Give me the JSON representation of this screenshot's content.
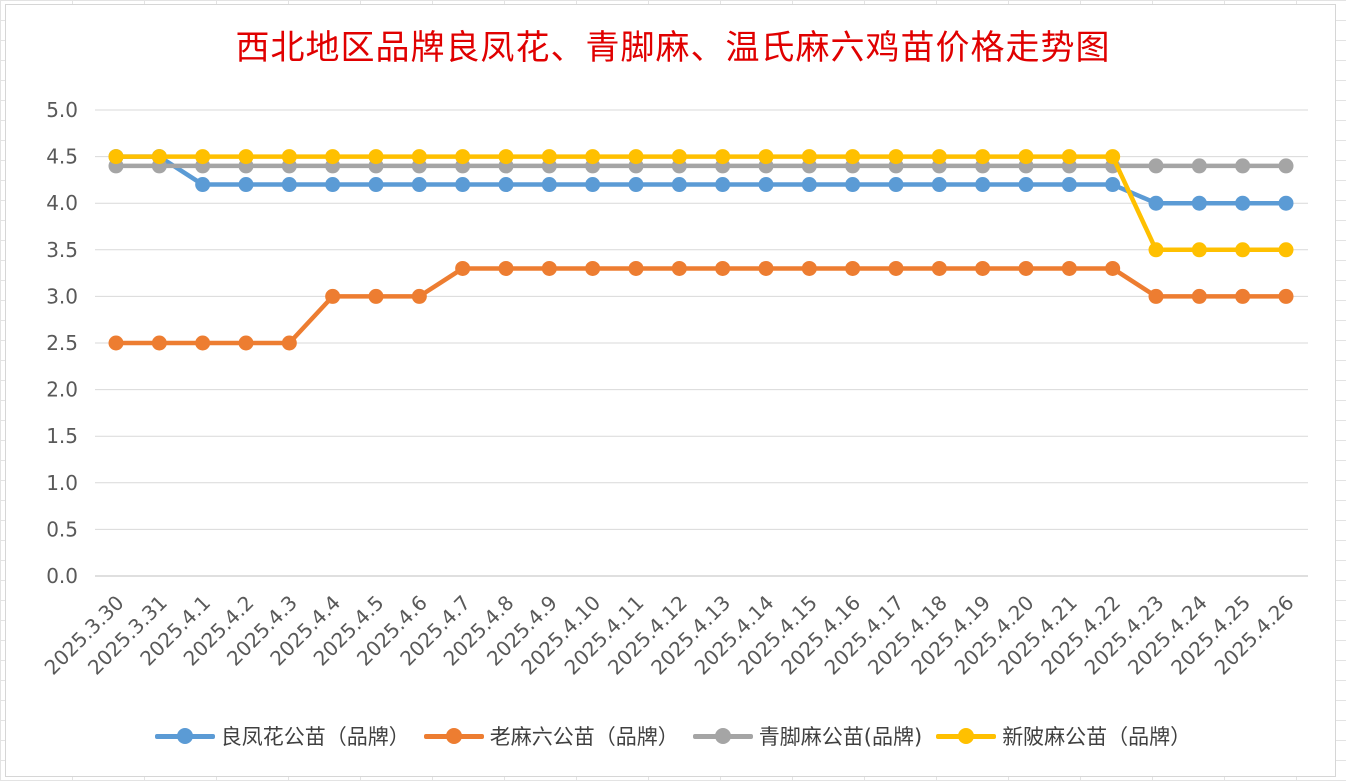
{
  "chart_data": {
    "type": "line",
    "title": "西北地区品牌良凤花、青脚麻、温氏麻六鸡苗价格走势图",
    "categories": [
      "2025.3.30",
      "2025.3.31",
      "2025.4.1",
      "2025.4.2",
      "2025.4.3",
      "2025.4.4",
      "2025.4.5",
      "2025.4.6",
      "2025.4.7",
      "2025.4.8",
      "2025.4.9",
      "2025.4.10",
      "2025.4.11",
      "2025.4.12",
      "2025.4.13",
      "2025.4.14",
      "2025.4.15",
      "2025.4.16",
      "2025.4.17",
      "2025.4.18",
      "2025.4.19",
      "2025.4.20",
      "2025.4.21",
      "2025.4.22",
      "2025.4.23",
      "2025.4.24",
      "2025.4.25",
      "2025.4.26"
    ],
    "ylim": [
      0,
      5.0
    ],
    "yticks": [
      "0.0",
      "0.5",
      "1.0",
      "1.5",
      "2.0",
      "2.5",
      "3.0",
      "3.5",
      "4.0",
      "4.5",
      "5.0"
    ],
    "grid": true,
    "legend_position": "bottom",
    "series": [
      {
        "name": "良凤花公苗（品牌）",
        "color": "#5b9bd5",
        "values": [
          4.5,
          4.5,
          4.2,
          4.2,
          4.2,
          4.2,
          4.2,
          4.2,
          4.2,
          4.2,
          4.2,
          4.2,
          4.2,
          4.2,
          4.2,
          4.2,
          4.2,
          4.2,
          4.2,
          4.2,
          4.2,
          4.2,
          4.2,
          4.2,
          4.0,
          4.0,
          4.0,
          4.0
        ]
      },
      {
        "name": "老麻六公苗（品牌）",
        "color": "#ed7d31",
        "values": [
          2.5,
          2.5,
          2.5,
          2.5,
          2.5,
          3.0,
          3.0,
          3.0,
          3.3,
          3.3,
          3.3,
          3.3,
          3.3,
          3.3,
          3.3,
          3.3,
          3.3,
          3.3,
          3.3,
          3.3,
          3.3,
          3.3,
          3.3,
          3.3,
          3.0,
          3.0,
          3.0,
          3.0
        ]
      },
      {
        "name": "青脚麻公苗(品牌)",
        "color": "#a5a5a5",
        "values": [
          4.4,
          4.4,
          4.4,
          4.4,
          4.4,
          4.4,
          4.4,
          4.4,
          4.4,
          4.4,
          4.4,
          4.4,
          4.4,
          4.4,
          4.4,
          4.4,
          4.4,
          4.4,
          4.4,
          4.4,
          4.4,
          4.4,
          4.4,
          4.4,
          4.4,
          4.4,
          4.4,
          4.4
        ]
      },
      {
        "name": "新陂麻公苗（品牌）",
        "color": "#ffc000",
        "values": [
          4.5,
          4.5,
          4.5,
          4.5,
          4.5,
          4.5,
          4.5,
          4.5,
          4.5,
          4.5,
          4.5,
          4.5,
          4.5,
          4.5,
          4.5,
          4.5,
          4.5,
          4.5,
          4.5,
          4.5,
          4.5,
          4.5,
          4.5,
          4.5,
          3.5,
          3.5,
          3.5,
          3.5
        ]
      }
    ]
  }
}
